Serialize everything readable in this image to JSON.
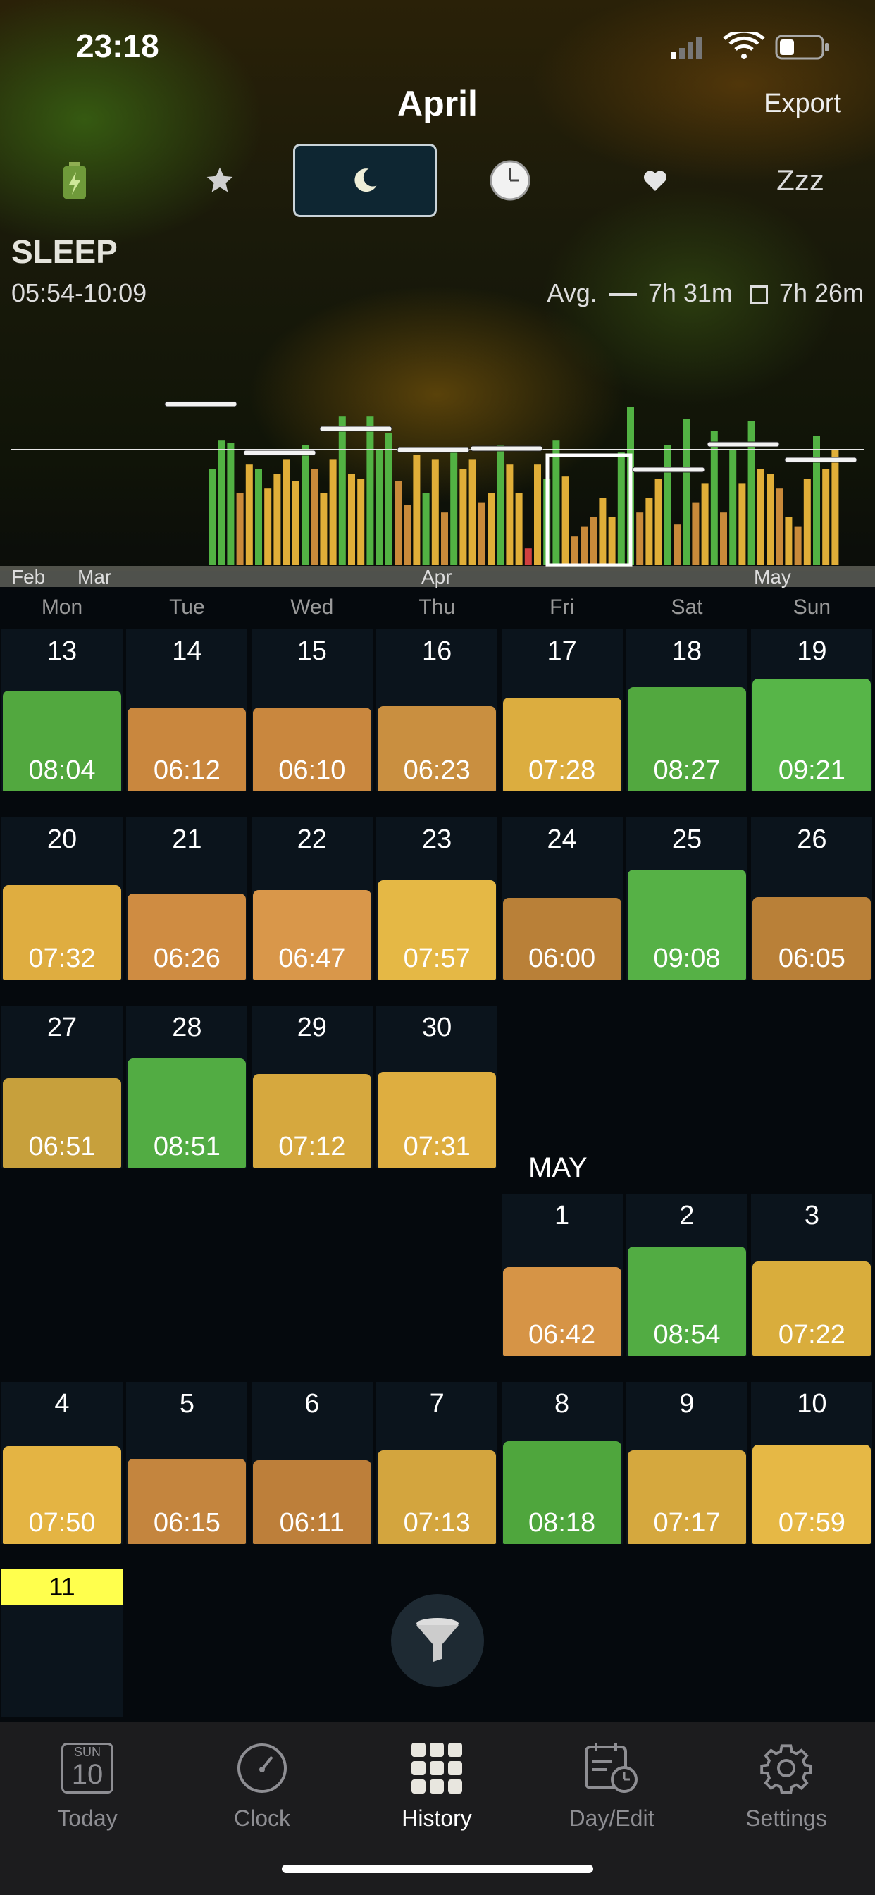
{
  "status": {
    "time": "23:18"
  },
  "header": {
    "title": "April",
    "export_label": "Export"
  },
  "tabs": [
    {
      "name": "battery",
      "icon": "battery-icon"
    },
    {
      "name": "star",
      "icon": "star-icon"
    },
    {
      "name": "sleep",
      "icon": "moon-icon",
      "active": true
    },
    {
      "name": "clock",
      "icon": "clock-icon"
    },
    {
      "name": "heart",
      "icon": "heart-icon"
    },
    {
      "name": "zzz",
      "label": "Zzz"
    }
  ],
  "section": {
    "title": "SLEEP",
    "range": "05:54-10:09",
    "avg_label": "Avg.",
    "avg_line_value": "7h 31m",
    "avg_box_value": "7h 26m"
  },
  "chart_data": {
    "type": "bar",
    "x_labels": [
      "Feb",
      "Mar",
      "Apr",
      "May"
    ],
    "colors": {
      "green": "#52b243",
      "yellow": "#e0ae38",
      "orange": "#c98a3a",
      "red": "#d04040"
    }
  },
  "weekdays": [
    "Mon",
    "Tue",
    "Wed",
    "Thu",
    "Fri",
    "Sat",
    "Sun"
  ],
  "april_weeks": [
    [
      {
        "day": "13",
        "dur": "08:04",
        "h": 0.84,
        "c": "#52a83f"
      },
      {
        "day": "14",
        "dur": "06:12",
        "h": 0.7,
        "c": "#c9873e"
      },
      {
        "day": "15",
        "dur": "06:10",
        "h": 0.7,
        "c": "#c9873e"
      },
      {
        "day": "16",
        "dur": "06:23",
        "h": 0.71,
        "c": "#c98f40"
      },
      {
        "day": "17",
        "dur": "07:28",
        "h": 0.78,
        "c": "#dcad3f"
      },
      {
        "day": "18",
        "dur": "08:27",
        "h": 0.87,
        "c": "#52a83f"
      },
      {
        "day": "19",
        "dur": "09:21",
        "h": 0.94,
        "c": "#57b548"
      }
    ],
    [
      {
        "day": "20",
        "dur": "07:32",
        "h": 0.79,
        "c": "#dfad40"
      },
      {
        "day": "21",
        "dur": "06:26",
        "h": 0.72,
        "c": "#cf8c42"
      },
      {
        "day": "22",
        "dur": "06:47",
        "h": 0.75,
        "c": "#d9974a"
      },
      {
        "day": "23",
        "dur": "07:57",
        "h": 0.83,
        "c": "#e5b845"
      },
      {
        "day": "24",
        "dur": "06:00",
        "h": 0.68,
        "c": "#b98038"
      },
      {
        "day": "25",
        "dur": "09:08",
        "h": 0.92,
        "c": "#56b146"
      },
      {
        "day": "26",
        "dur": "06:05",
        "h": 0.69,
        "c": "#b98038"
      }
    ],
    [
      {
        "day": "27",
        "dur": "06:51",
        "h": 0.75,
        "c": "#c7a03c"
      },
      {
        "day": "28",
        "dur": "08:51",
        "h": 0.91,
        "c": "#52ac43"
      },
      {
        "day": "29",
        "dur": "07:12",
        "h": 0.78,
        "c": "#d6a83e"
      },
      {
        "day": "30",
        "dur": "07:31",
        "h": 0.8,
        "c": "#deae40"
      }
    ]
  ],
  "may_label": "MAY",
  "may_week1": [
    {
      "day": "1",
      "dur": "06:42",
      "h": 0.74,
      "c": "#d69446"
    },
    {
      "day": "2",
      "dur": "08:54",
      "h": 0.91,
      "c": "#52ac43"
    },
    {
      "day": "3",
      "dur": "07:22",
      "h": 0.79,
      "c": "#d9ad3c"
    }
  ],
  "may_week2": [
    {
      "day": "4",
      "dur": "07:50",
      "h": 0.82,
      "c": "#e4b443"
    },
    {
      "day": "5",
      "dur": "06:15",
      "h": 0.71,
      "c": "#c4853e"
    },
    {
      "day": "6",
      "dur": "06:11",
      "h": 0.7,
      "c": "#bd7f3a"
    },
    {
      "day": "7",
      "dur": "07:13",
      "h": 0.78,
      "c": "#d3a53e"
    },
    {
      "day": "8",
      "dur": "08:18",
      "h": 0.86,
      "c": "#4fa63d"
    },
    {
      "day": "9",
      "dur": "07:17",
      "h": 0.78,
      "c": "#d5a83e"
    },
    {
      "day": "10",
      "dur": "07:59",
      "h": 0.83,
      "c": "#e6b845"
    }
  ],
  "today": {
    "day": "11"
  },
  "tabbar": {
    "today_dow": "SUN",
    "today_num": "10",
    "items": [
      "Today",
      "Clock",
      "History",
      "Day/Edit",
      "Settings"
    ]
  }
}
